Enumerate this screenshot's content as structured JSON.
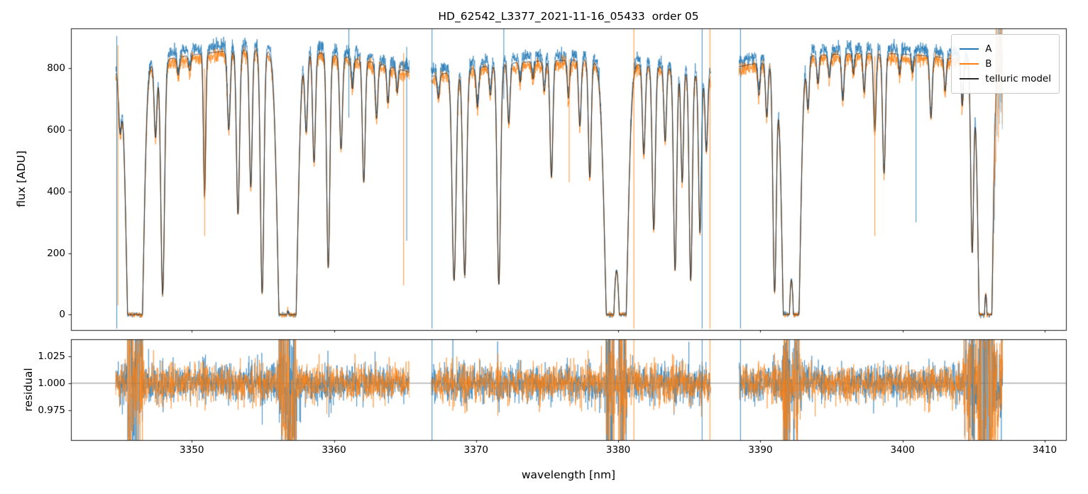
{
  "chart_data": [
    {
      "type": "line",
      "title": "HD_62542_L3377_2021-11-16_05433  order 05",
      "ylabel": "flux [ADU]",
      "xlabel": "",
      "xlim": [
        3341.5,
        3411.5
      ],
      "ylim": [
        -50,
        930
      ],
      "yticks": [
        0,
        200,
        400,
        600,
        800
      ],
      "grid": false,
      "legend_position": "upper right",
      "legend": [
        {
          "label": "A",
          "color": "#1f77b4"
        },
        {
          "label": "B",
          "color": "#ff7f0e"
        },
        {
          "label": "telluric model",
          "color": "#2b2b2b"
        }
      ],
      "spectrum_model": {
        "segments": [
          [
            3344.65,
            3365.3
          ],
          [
            3366.85,
            3386.5
          ],
          [
            3388.5,
            3406.45
          ]
        ],
        "model_end": 3407.05,
        "low_snr_region": [
          3406.4,
          3407.05
        ],
        "continuum": [
          {
            "level": 880,
            "center": 3355.0,
            "curvature": 0.0008
          },
          {
            "level": 845,
            "center": 3376.7,
            "curvature": 0.00065
          },
          {
            "level": 868,
            "center": 3397.7,
            "curvature": 0.0006
          }
        ],
        "b_scale": 0.963,
        "model_scale": 0.978,
        "absorption_lines": [
          [
            3344.95,
            0.22,
            0.1
          ],
          [
            3345.7,
            1.35,
            0.28
          ],
          [
            3346.35,
            1.25,
            0.26
          ],
          [
            3347.45,
            0.3,
            0.1
          ],
          [
            3347.95,
            0.92,
            0.13
          ],
          [
            3349.05,
            0.07,
            0.08
          ],
          [
            3349.85,
            0.06,
            0.08
          ],
          [
            3350.9,
            0.55,
            0.08
          ],
          [
            3352.6,
            0.3,
            0.1
          ],
          [
            3353.25,
            0.62,
            0.11
          ],
          [
            3354.15,
            0.52,
            0.1
          ],
          [
            3354.95,
            0.92,
            0.12
          ],
          [
            3356.35,
            1.3,
            0.3
          ],
          [
            3357.15,
            1.25,
            0.28
          ],
          [
            3358.05,
            0.3,
            0.1
          ],
          [
            3358.6,
            0.42,
            0.1
          ],
          [
            3359.6,
            0.82,
            0.11
          ],
          [
            3360.5,
            0.36,
            0.1
          ],
          [
            3361.3,
            0.12,
            0.08
          ],
          [
            3362.1,
            0.48,
            0.1
          ],
          [
            3363.0,
            0.22,
            0.09
          ],
          [
            3363.8,
            0.15,
            0.08
          ],
          [
            3364.45,
            0.1,
            0.07
          ],
          [
            3367.35,
            0.1,
            0.08
          ],
          [
            3368.45,
            0.86,
            0.14
          ],
          [
            3369.2,
            0.84,
            0.13
          ],
          [
            3370.1,
            0.16,
            0.09
          ],
          [
            3371.0,
            0.12,
            0.08
          ],
          [
            3371.6,
            0.88,
            0.12
          ],
          [
            3372.3,
            0.24,
            0.09
          ],
          [
            3373.1,
            0.08,
            0.07
          ],
          [
            3374.0,
            0.07,
            0.07
          ],
          [
            3374.8,
            0.12,
            0.08
          ],
          [
            3375.3,
            0.46,
            0.1
          ],
          [
            3376.5,
            0.15,
            0.08
          ],
          [
            3377.3,
            0.26,
            0.09
          ],
          [
            3378.0,
            0.46,
            0.1
          ],
          [
            3379.4,
            1.3,
            0.33
          ],
          [
            3380.35,
            1.28,
            0.3
          ],
          [
            3381.8,
            0.36,
            0.1
          ],
          [
            3382.5,
            0.66,
            0.11
          ],
          [
            3383.3,
            0.3,
            0.09
          ],
          [
            3384.0,
            0.82,
            0.11
          ],
          [
            3384.5,
            0.46,
            0.09
          ],
          [
            3385.1,
            0.86,
            0.11
          ],
          [
            3385.75,
            0.66,
            0.1
          ],
          [
            3386.2,
            0.32,
            0.09
          ],
          [
            3389.9,
            0.13,
            0.08
          ],
          [
            3390.45,
            0.22,
            0.09
          ],
          [
            3391.0,
            0.9,
            0.12
          ],
          [
            3391.8,
            1.3,
            0.26
          ],
          [
            3392.55,
            1.25,
            0.25
          ],
          [
            3393.35,
            0.2,
            0.09
          ],
          [
            3394.05,
            0.11,
            0.08
          ],
          [
            3394.85,
            0.09,
            0.08
          ],
          [
            3395.8,
            0.18,
            0.09
          ],
          [
            3396.55,
            0.08,
            0.07
          ],
          [
            3397.3,
            0.15,
            0.08
          ],
          [
            3398.05,
            0.3,
            0.09
          ],
          [
            3398.7,
            0.46,
            0.1
          ],
          [
            3399.8,
            0.08,
            0.07
          ],
          [
            3400.7,
            0.07,
            0.07
          ],
          [
            3402.0,
            0.24,
            0.09
          ],
          [
            3403.0,
            0.13,
            0.08
          ],
          [
            3404.2,
            0.18,
            0.08
          ],
          [
            3404.9,
            0.74,
            0.1
          ],
          [
            3405.55,
            1.3,
            0.22
          ],
          [
            3406.15,
            1.25,
            0.2
          ]
        ],
        "spike_artifacts": [
          [
            3344.72,
            "A",
            -45,
            905
          ],
          [
            3344.8,
            "B",
            30,
            875
          ],
          [
            3350.9,
            "B",
            255,
            800
          ],
          [
            3361.05,
            "A",
            640,
            928
          ],
          [
            3364.9,
            "B",
            95,
            850
          ],
          [
            3365.12,
            "A",
            240,
            870
          ],
          [
            3366.9,
            "A",
            -45,
            928
          ],
          [
            3371.95,
            "A",
            700,
            928
          ],
          [
            3376.55,
            "B",
            430,
            830
          ],
          [
            3381.1,
            "B",
            -45,
            928
          ],
          [
            3385.9,
            "A",
            -45,
            928
          ],
          [
            3386.45,
            "B",
            -45,
            928
          ],
          [
            3388.6,
            "A",
            -45,
            928
          ],
          [
            3398.05,
            "B",
            255,
            840
          ],
          [
            3400.95,
            "A",
            300,
            855
          ]
        ]
      }
    },
    {
      "type": "line",
      "ylabel": "residual",
      "xlabel": "wavelength [nm]",
      "xlim": [
        3341.5,
        3411.5
      ],
      "ylim": [
        0.947,
        1.041
      ],
      "yticks": [
        0.975,
        1.0,
        1.025
      ],
      "ytick_labels": [
        "0.975",
        "1.000",
        "1.025"
      ],
      "xticks": [
        3350,
        3360,
        3370,
        3380,
        3390,
        3400,
        3410
      ],
      "reference_line": 1.0,
      "noise_sigma_base": 0.008
    }
  ]
}
